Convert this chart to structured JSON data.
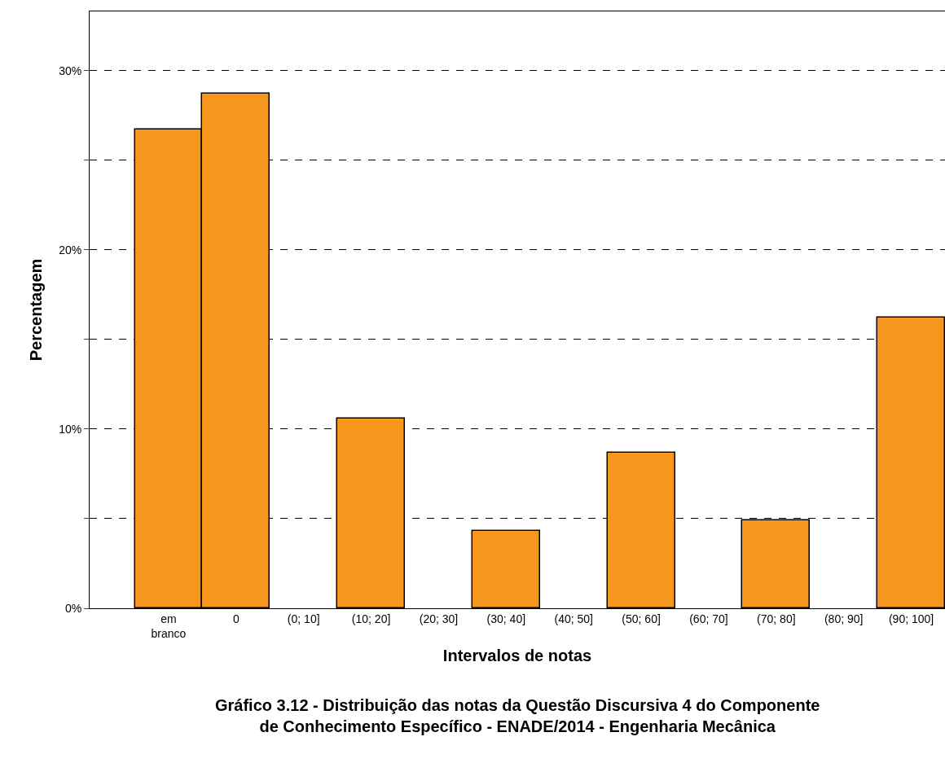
{
  "chart_data": {
    "type": "bar",
    "title": "Gráfico 3.12 - Distribuição das notas da Questão Discursiva 4 do Componente de Conhecimento Específico - ENADE/2014 - Engenharia Mecânica",
    "xlabel": "Intervalos de notas",
    "ylabel": "Percentagem",
    "categories": [
      "em branco",
      "0",
      "(0; 10]",
      "(10; 20]",
      "(20; 30]",
      "(30; 40]",
      "(40; 50]",
      "(50; 60]",
      "(60; 70]",
      "(70; 80]",
      "(80; 90]",
      "(90; 100]"
    ],
    "values": [
      26.7,
      28.7,
      0,
      10.6,
      0,
      4.3,
      0,
      8.7,
      0,
      4.9,
      0,
      16.2
    ],
    "color": "#f7961d",
    "ylim": [
      0,
      33.3
    ],
    "yticks": [
      {
        "value": 0,
        "label": "0%"
      },
      {
        "value": 5,
        "label": null
      },
      {
        "value": 10,
        "label": "10%"
      },
      {
        "value": 15,
        "label": null
      },
      {
        "value": 20,
        "label": "20%"
      },
      {
        "value": 25,
        "label": null
      },
      {
        "value": 30,
        "label": "30%"
      }
    ],
    "grid": "y",
    "legend": false
  }
}
